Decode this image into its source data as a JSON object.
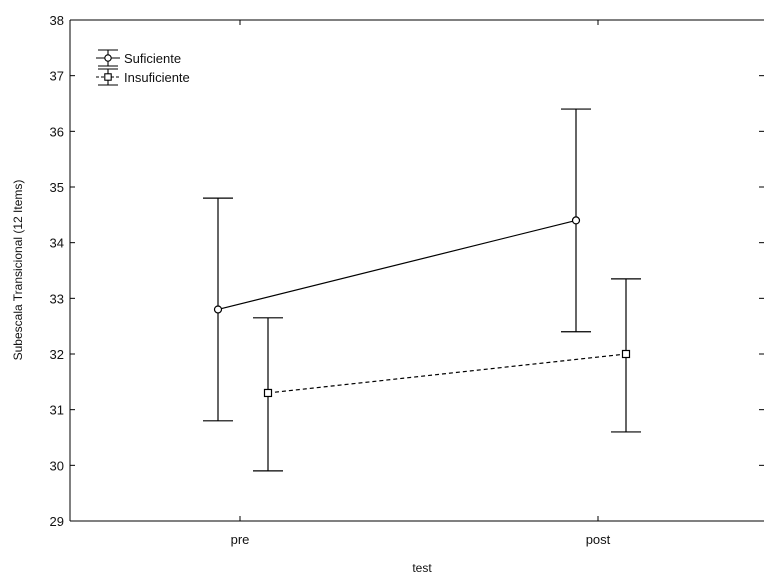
{
  "chart_data": {
    "type": "line",
    "title": "",
    "xlabel": "test",
    "ylabel": "Subescala Transicional (12 Items)",
    "categories": [
      "pre",
      "post"
    ],
    "ylim": [
      29,
      38
    ],
    "yticks": [
      29,
      30,
      31,
      32,
      33,
      34,
      35,
      36,
      37,
      38
    ],
    "legend_position": "top-left",
    "grid": false,
    "series": [
      {
        "name": "Suficiente",
        "marker": "circle",
        "line_style": "solid",
        "color": "#000000",
        "values": [
          32.8,
          34.4
        ],
        "error_low": [
          30.8,
          32.4
        ],
        "error_high": [
          34.8,
          36.4
        ]
      },
      {
        "name": "Insuficiente",
        "marker": "square",
        "line_style": "dashed",
        "color": "#000000",
        "values": [
          31.3,
          32.0
        ],
        "error_low": [
          29.9,
          30.6
        ],
        "error_high": [
          32.65,
          33.35
        ]
      }
    ]
  }
}
